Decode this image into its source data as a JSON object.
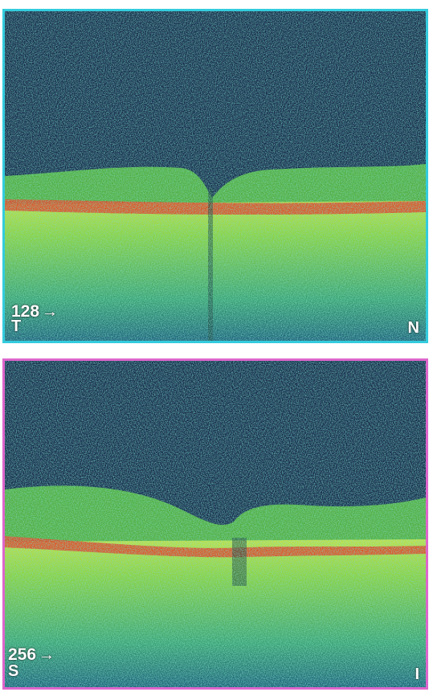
{
  "panels": [
    {
      "id": "top",
      "border_color": "#33ccdd",
      "scan_number": "128",
      "arrow_glyph": "→",
      "left_label": "T",
      "right_label": "N"
    },
    {
      "id": "bottom",
      "border_color": "#dd66cc",
      "scan_number": "256",
      "arrow_glyph": "→",
      "left_label": "S",
      "right_label": "I"
    }
  ],
  "colors": {
    "background_noise": "#15244a",
    "retina_layer": "#5fc43a",
    "rpe_band": "#e8401c",
    "choroid": "#9ad43a"
  }
}
